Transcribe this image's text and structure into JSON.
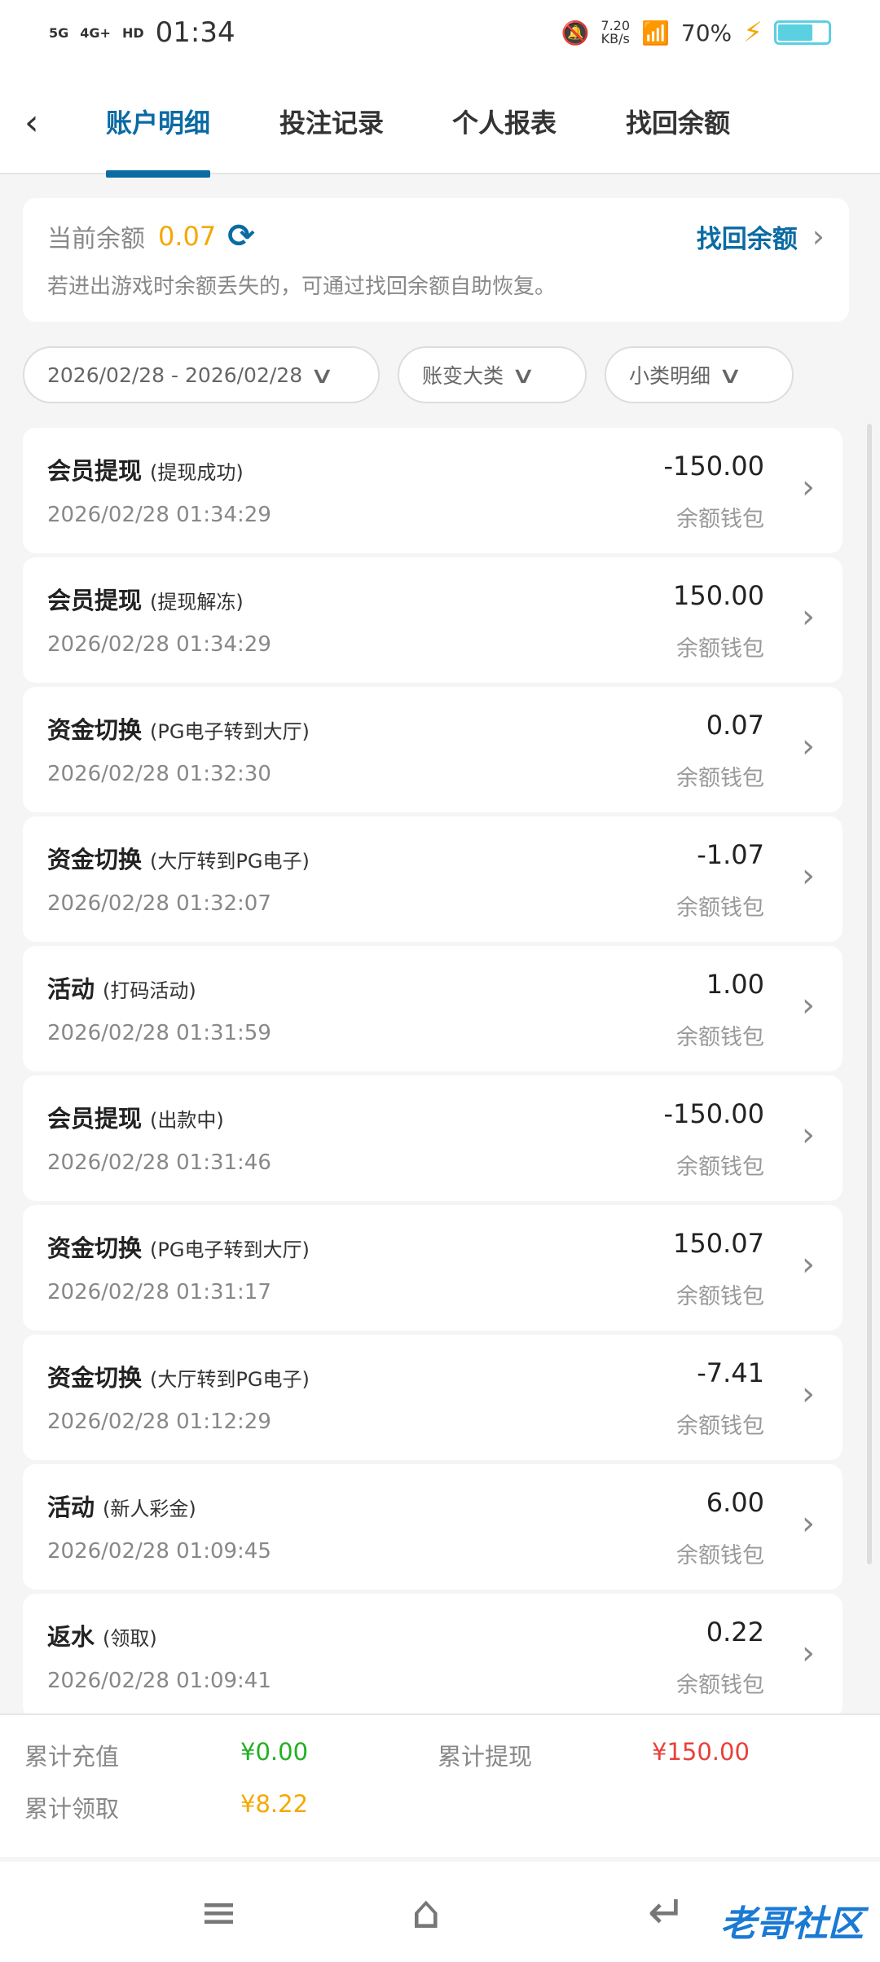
{
  "status_bar": {
    "signal1": "5G",
    "signal2": "4G+",
    "hd": "HD",
    "time": "01:34",
    "speed": "7.20",
    "speed_unit": "KB/s",
    "battery": "70%",
    "battery_level": 70
  },
  "tabs": [
    {
      "label": "账户明细",
      "active": true
    },
    {
      "label": "投注记录"
    },
    {
      "label": "个人报表"
    },
    {
      "label": "找回余额"
    }
  ],
  "balance": {
    "label": "当前余额",
    "amount": "0.07",
    "recover_label": "找回余额",
    "hint": "若进出游戏时余额丢失的，可通过找回余额自助恢复。"
  },
  "filters": [
    "2026/02/28 - 2026/02/28",
    "账变大类",
    "小类明细"
  ],
  "records": [
    {
      "type": "会员提现",
      "sub": "(提现成功)",
      "time": "2026/02/28 01:34:29",
      "amount": "-150.00",
      "wallet": "余额钱包"
    },
    {
      "type": "会员提现",
      "sub": "(提现解冻)",
      "time": "2026/02/28 01:34:29",
      "amount": "150.00",
      "wallet": "余额钱包"
    },
    {
      "type": "资金切换",
      "sub": "(PG电子转到大厅)",
      "time": "2026/02/28 01:32:30",
      "amount": "0.07",
      "wallet": "余额钱包"
    },
    {
      "type": "资金切换",
      "sub": "(大厅转到PG电子)",
      "time": "2026/02/28 01:32:07",
      "amount": "-1.07",
      "wallet": "余额钱包"
    },
    {
      "type": "活动",
      "sub": "(打码活动)",
      "time": "2026/02/28 01:31:59",
      "amount": "1.00",
      "wallet": "余额钱包"
    },
    {
      "type": "会员提现",
      "sub": "(出款中)",
      "time": "2026/02/28 01:31:46",
      "amount": "-150.00",
      "wallet": "余额钱包"
    },
    {
      "type": "资金切换",
      "sub": "(PG电子转到大厅)",
      "time": "2026/02/28 01:31:17",
      "amount": "150.07",
      "wallet": "余额钱包"
    },
    {
      "type": "资金切换",
      "sub": "(大厅转到PG电子)",
      "time": "2026/02/28 01:12:29",
      "amount": "-7.41",
      "wallet": "余额钱包"
    },
    {
      "type": "活动",
      "sub": "(新人彩金)",
      "time": "2026/02/28 01:09:45",
      "amount": "6.00",
      "wallet": "余额钱包"
    },
    {
      "type": "返水",
      "sub": "(领取)",
      "time": "2026/02/28 01:09:41",
      "amount": "0.22",
      "wallet": "余额钱包"
    }
  ],
  "summary": {
    "deposit_label": "累计充值",
    "deposit": "¥0.00",
    "withdraw_label": "累计提现",
    "withdraw": "¥150.00",
    "claim_label": "累计领取",
    "claim": "¥8.22"
  },
  "colors": {
    "accent": "#0b6ba3",
    "balance": "#f5a800",
    "deposit": "#22b022",
    "withdraw": "#e8403a",
    "claim": "#f5a800"
  },
  "watermark": "老哥社区 LAOGESHEQU"
}
